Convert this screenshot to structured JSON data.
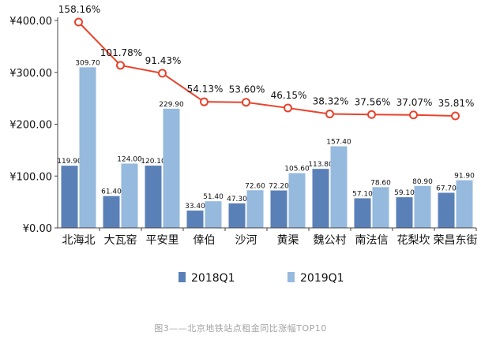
{
  "chart_data": {
    "type": "bar",
    "categories": [
      "北海北",
      "大瓦窑",
      "平安里",
      "倖伯",
      "沙河",
      "黄渠",
      "魏公村",
      "南法信",
      "花梨坎",
      "荣昌东街"
    ],
    "series": [
      {
        "name": "2018Q1",
        "values": [
          119.9,
          61.4,
          120.1,
          33.4,
          47.3,
          72.2,
          113.8,
          57.1,
          59.1,
          67.7
        ],
        "labels": [
          "119.90",
          "61.40",
          "120.10",
          "33.40",
          "47.30",
          "72.20",
          "113.80",
          "57.10",
          "59.10",
          "67.70"
        ]
      },
      {
        "name": "2019Q1",
        "values": [
          309.7,
          124.0,
          229.9,
          51.4,
          72.6,
          105.6,
          157.4,
          78.6,
          80.9,
          91.9
        ],
        "labels": [
          "309.70",
          "124.00",
          "229.90",
          "51.40",
          "72.60",
          "105.60",
          "157.40",
          "78.60",
          "80.90",
          "91.90"
        ]
      }
    ],
    "growth": {
      "values": [
        158.16,
        101.78,
        91.43,
        54.13,
        53.6,
        46.15,
        38.32,
        37.56,
        37.07,
        35.81
      ],
      "labels": [
        "158.16%",
        "101.78%",
        "91.43%",
        "54.13%",
        "53.60%",
        "46.15%",
        "38.32%",
        "37.56%",
        "37.07%",
        "35.81%"
      ]
    },
    "ylim": [
      0,
      400
    ],
    "yticks": [
      {
        "value": 0,
        "label": "¥0.00"
      },
      {
        "value": 100,
        "label": "¥100.00"
      },
      {
        "value": 200,
        "label": "¥200.00"
      },
      {
        "value": 300,
        "label": "¥300.00"
      },
      {
        "value": 400,
        "label": "¥400.00"
      }
    ],
    "caption": "图3——北京地铁站点租金同比涨幅TOP10",
    "colors": {
      "s2018": "#5a80b8",
      "s2019": "#96b9de",
      "line": "#e8432c"
    },
    "grid": false,
    "legend_position": "bottom"
  }
}
